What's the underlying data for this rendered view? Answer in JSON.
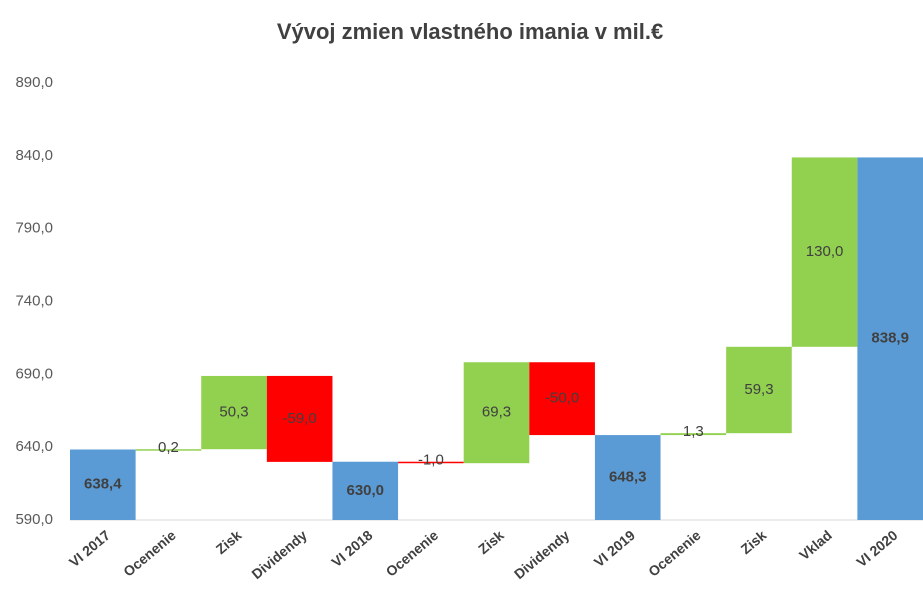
{
  "chart_data": {
    "type": "waterfall",
    "title": "Vývoj zmien vlastného imania v mil.€",
    "categories": [
      "VI 2017",
      "Ocenenie",
      "Zisk",
      "Dividendy",
      "VI 2018",
      "Ocenenie",
      "Zisk",
      "Dividendy",
      "VI 2019",
      "Ocenenie",
      "Zisk",
      "Vklad",
      "VI 2020"
    ],
    "values": [
      638.4,
      0.2,
      50.3,
      -59.0,
      630.0,
      -1.0,
      69.3,
      -50.0,
      648.3,
      1.3,
      59.3,
      130.0,
      838.9
    ],
    "value_labels": [
      "638,4",
      "0,2",
      "50,3",
      "-59,0",
      "630,0",
      "-1,0",
      "69,3",
      "-50,0",
      "648,3",
      "1,3",
      "59,3",
      "130,0",
      "838,9"
    ],
    "measure": [
      "total",
      "relative",
      "relative",
      "relative",
      "total",
      "relative",
      "relative",
      "relative",
      "total",
      "relative",
      "relative",
      "relative",
      "total"
    ],
    "colors": [
      "#5b9bd5",
      "#92d050",
      "#92d050",
      "#ff0000",
      "#5b9bd5",
      "#ff0000",
      "#92d050",
      "#ff0000",
      "#5b9bd5",
      "#92d050",
      "#92d050",
      "#92d050",
      "#5b9bd5"
    ],
    "ylim": [
      590,
      890
    ],
    "yticks": [
      {
        "value": 590,
        "label": "590,0"
      },
      {
        "value": 640,
        "label": "640,0"
      },
      {
        "value": 690,
        "label": "690,0"
      },
      {
        "value": 740,
        "label": "740,0"
      },
      {
        "value": 790,
        "label": "790,0"
      },
      {
        "value": 840,
        "label": "840,0"
      },
      {
        "value": 890,
        "label": "890,0"
      }
    ],
    "grid": false
  }
}
